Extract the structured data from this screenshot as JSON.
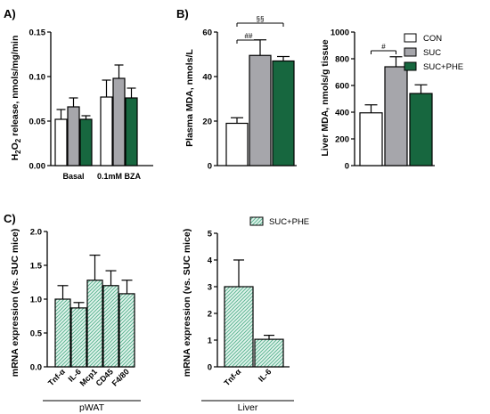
{
  "colors": {
    "CON": "#ffffff",
    "SUC": "#a6a6ab",
    "SUC+PHE": "#17673f",
    "hatch": "#8fd1b9",
    "hatch_bg": "#e4f5ee"
  },
  "legend_top": [
    "CON",
    "SUC",
    "SUC+PHE"
  ],
  "legend_bottom": [
    "SUC+PHE"
  ],
  "chart_data": [
    {
      "id": "A",
      "panel_label": "A)",
      "type": "bar",
      "categories": [
        "Basal",
        "0.1mM BZA"
      ],
      "series": [
        {
          "key": "CON",
          "values": [
            0.052,
            0.077
          ],
          "errors": [
            0.011,
            0.019
          ]
        },
        {
          "key": "SUC",
          "values": [
            0.066,
            0.098
          ],
          "errors": [
            0.01,
            0.015
          ]
        },
        {
          "key": "SUC+PHE",
          "values": [
            0.052,
            0.076
          ],
          "errors": [
            0.004,
            0.011
          ]
        }
      ],
      "ylabel": "H2O2 release, nmols/mg/min",
      "ylim": [
        0,
        0.15
      ],
      "yticks": [
        "0.00",
        "0.05",
        "0.10",
        "0.15"
      ],
      "ytick_values": [
        0,
        0.05,
        0.1,
        0.15
      ]
    },
    {
      "id": "B1",
      "panel_label": "B)",
      "type": "bar",
      "categories": [
        ""
      ],
      "series": [
        {
          "key": "CON",
          "values": [
            19
          ],
          "errors": [
            2.5
          ]
        },
        {
          "key": "SUC",
          "values": [
            49.5
          ],
          "errors": [
            7
          ]
        },
        {
          "key": "SUC+PHE",
          "values": [
            47
          ],
          "errors": [
            2
          ]
        }
      ],
      "ylabel": "Plasma MDA, nmols/L",
      "ylim": [
        0,
        60
      ],
      "yticks": [
        "0",
        "20",
        "40",
        "60"
      ],
      "ytick_values": [
        0,
        20,
        40,
        60
      ],
      "annotations": [
        {
          "text": "##",
          "from": 0,
          "to": 1,
          "level": 0
        },
        {
          "text": "§§",
          "from": 0,
          "to": 2,
          "level": 1
        }
      ]
    },
    {
      "id": "B2",
      "panel_label": "",
      "type": "bar",
      "categories": [
        ""
      ],
      "series": [
        {
          "key": "CON",
          "values": [
            395
          ],
          "errors": [
            60
          ]
        },
        {
          "key": "SUC",
          "values": [
            740
          ],
          "errors": [
            75
          ]
        },
        {
          "key": "SUC+PHE",
          "values": [
            540
          ],
          "errors": [
            65
          ]
        }
      ],
      "ylabel": "Liver MDA, nmols/g tissue",
      "ylim": [
        0,
        1000
      ],
      "yticks": [
        "0",
        "200",
        "400",
        "600",
        "800",
        "1000"
      ],
      "ytick_values": [
        0,
        200,
        400,
        600,
        800,
        1000
      ],
      "annotations": [
        {
          "text": "#",
          "from": 0,
          "to": 1,
          "level": 0
        }
      ]
    },
    {
      "id": "C1",
      "panel_label": "C)",
      "type": "bar",
      "categories": [
        "Tnf-α",
        "IL-6",
        "Mcp1",
        "CD45",
        "F4/80"
      ],
      "values": [
        1.0,
        0.87,
        1.28,
        1.2,
        1.08
      ],
      "errors": [
        0.2,
        0.08,
        0.37,
        0.22,
        0.2
      ],
      "ylabel": "mRNA expression (vs. SUC mice)",
      "ylim": [
        0,
        2.0
      ],
      "yticks": [
        "0.0",
        "0.5",
        "1.0",
        "1.5",
        "2.0"
      ],
      "ytick_values": [
        0,
        0.5,
        1,
        1.5,
        2
      ],
      "group_label": "pWAT"
    },
    {
      "id": "C2",
      "panel_label": "",
      "type": "bar",
      "categories": [
        "Tnf-α",
        "IL-6"
      ],
      "values": [
        3.0,
        1.03
      ],
      "errors": [
        1.0,
        0.15
      ],
      "ylabel": "mRNA expression (vs. SUC mice)",
      "ylim": [
        0,
        5
      ],
      "yticks": [
        "0",
        "1",
        "2",
        "3",
        "4",
        "5"
      ],
      "ytick_values": [
        0,
        1,
        2,
        3,
        4,
        5
      ],
      "group_label": "Liver"
    }
  ]
}
